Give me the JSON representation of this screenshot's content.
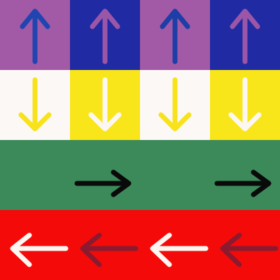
{
  "board": {
    "rows": [
      {
        "direction": "up",
        "cells": [
          {
            "bg": "#a25aa6",
            "arrow": "#2145b0"
          },
          {
            "bg": "#1f2aa3",
            "arrow": "#9b56a7"
          },
          {
            "bg": "#a25aa6",
            "arrow": "#1d3ea6"
          },
          {
            "bg": "#1f2aa3",
            "arrow": "#9b56a7"
          }
        ]
      },
      {
        "direction": "down",
        "cells": [
          {
            "bg": "#fcf8f6",
            "arrow": "#f8e21c"
          },
          {
            "bg": "#f9e61a",
            "arrow": "#fdf7f3"
          },
          {
            "bg": "#fcf8f6",
            "arrow": "#f8e21c"
          },
          {
            "bg": "#f9e61a",
            "arrow": "#fdf7f3"
          }
        ]
      },
      {
        "direction": "right",
        "band": "#3c8a5a",
        "cells": [
          {
            "bg": "#3c8a5a",
            "arrow": "#3c8a5a"
          },
          {
            "bg": "#3c8a5a",
            "arrow": "#0a0a0a"
          },
          {
            "bg": "#3c8a5a",
            "arrow": "#3c8a5a"
          },
          {
            "bg": "#3c8a5a",
            "arrow": "#0a0a0a"
          }
        ]
      },
      {
        "direction": "left",
        "cells": [
          {
            "bg": "#f50a0a",
            "arrow": "#fdf6f1"
          },
          {
            "bg": "#f50a0a",
            "arrow": "#8c1a2e"
          },
          {
            "bg": "#f50a0a",
            "arrow": "#fdf6f1"
          },
          {
            "bg": "#f50a0a",
            "arrow": "#8c1a2e"
          }
        ]
      }
    ]
  }
}
